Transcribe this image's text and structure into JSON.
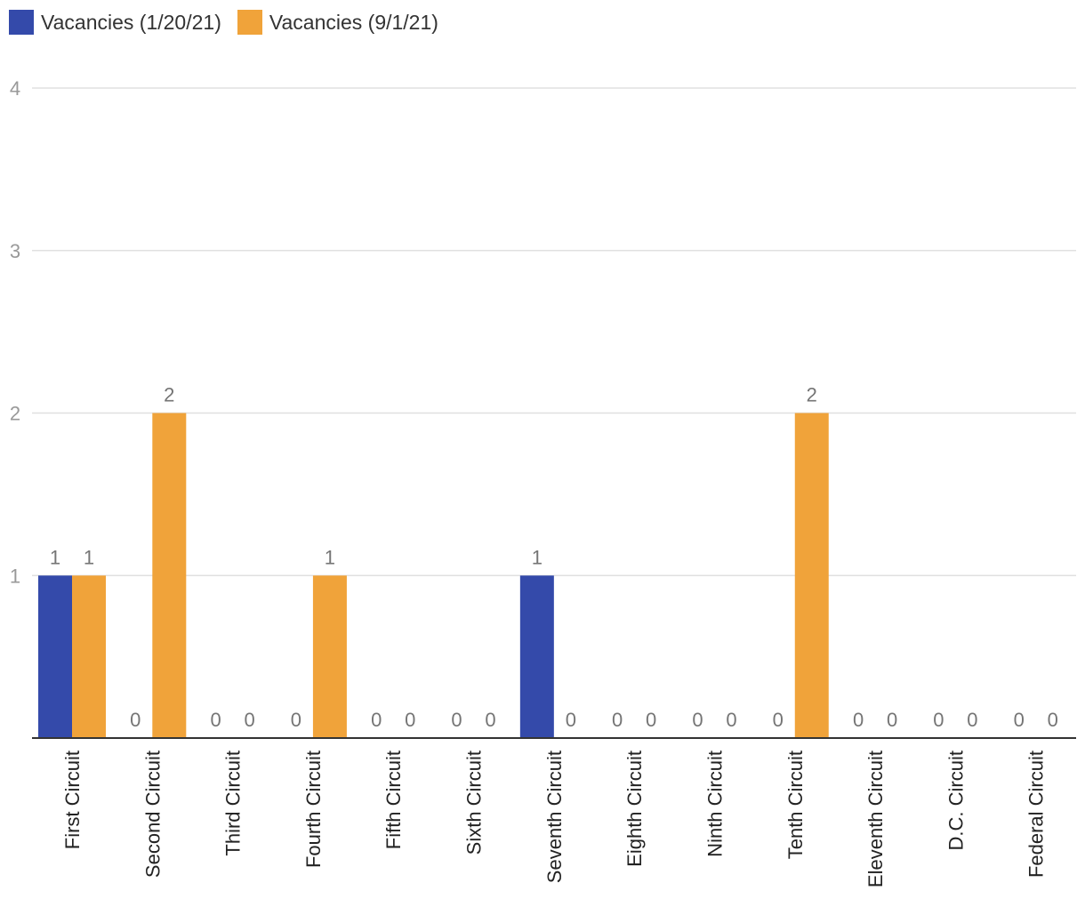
{
  "chart_data": {
    "type": "bar",
    "categories": [
      "First Circuit",
      "Second Circuit",
      "Third Circuit",
      "Fourth Circuit",
      "Fifth Circuit",
      "Sixth Circuit",
      "Seventh Circuit",
      "Eighth Circuit",
      "Ninth Circuit",
      "Tenth Circuit",
      "Eleventh Circuit",
      "D.C. Circuit",
      "Federal Circuit"
    ],
    "series": [
      {
        "name": "Vacancies (1/20/21)",
        "color": "#344aaa",
        "values": [
          1,
          0,
          0,
          0,
          0,
          0,
          1,
          0,
          0,
          0,
          0,
          0,
          0
        ]
      },
      {
        "name": "Vacancies (9/1/21)",
        "color": "#f0a33a",
        "values": [
          1,
          2,
          0,
          1,
          0,
          0,
          0,
          0,
          0,
          2,
          0,
          0,
          0
        ]
      }
    ],
    "yticks": [
      "1",
      "2",
      "3",
      "4"
    ],
    "ylim": [
      0,
      4
    ],
    "grid": true,
    "legend_position": "top-left",
    "data_labels": true
  }
}
